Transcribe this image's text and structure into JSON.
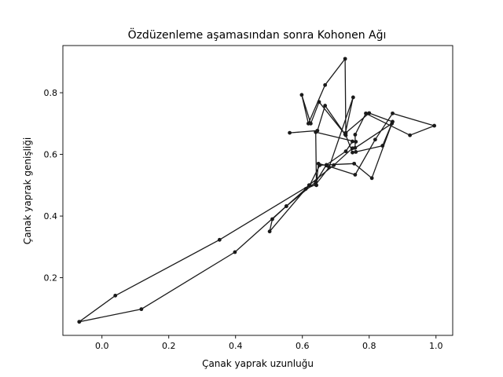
{
  "chart_data": {
    "type": "line",
    "title": "Özdüzenleme aşamasından sonra Kohonen Ağı",
    "xlabel": "Çanak yaprak uzunluğu",
    "ylabel": "Çanak yaprak genişliği",
    "xlim": [
      -0.117,
      1.05
    ],
    "ylim": [
      0.013,
      0.953
    ],
    "xticks": [
      0.0,
      0.2,
      0.4,
      0.6,
      0.8,
      1.0
    ],
    "xtick_labels": [
      "0.0",
      "0.2",
      "0.4",
      "0.6",
      "0.8",
      "1.0"
    ],
    "yticks": [
      0.2,
      0.4,
      0.6,
      0.8
    ],
    "ytick_labels": [
      "0.2",
      "0.4",
      "0.6",
      "0.8"
    ],
    "grid": false,
    "legend": "none",
    "line_color": "#1a1a1a",
    "marker": "circle",
    "series": [
      {
        "x": [
          -0.068,
          0.118,
          0.398,
          0.552,
          0.64,
          0.672,
          0.73,
          0.75,
          0.76,
          0.64,
          0.642,
          0.648,
          0.672,
          0.758,
          0.818,
          0.87,
          0.995,
          0.922,
          0.79,
          0.758,
          0.758,
          0.868,
          0.808,
          0.755,
          0.652,
          0.622,
          0.352,
          0.04,
          -0.068
        ],
        "y": [
          0.057,
          0.098,
          0.283,
          0.432,
          0.51,
          0.566,
          0.61,
          0.642,
          0.641,
          0.672,
          0.5,
          0.57,
          0.564,
          0.534,
          0.648,
          0.733,
          0.693,
          0.662,
          0.733,
          0.664,
          0.621,
          0.7,
          0.523,
          0.57,
          0.565,
          0.5,
          0.323,
          0.142,
          0.057
        ]
      },
      {
        "x": [
          0.562,
          0.645,
          0.668,
          0.73,
          0.75,
          0.76,
          0.84,
          0.87,
          0.8,
          0.73,
          0.728,
          0.668,
          0.618,
          0.598,
          0.625,
          0.65,
          0.728,
          0.752,
          0.68,
          0.64,
          0.61,
          0.552,
          0.51,
          0.502,
          0.62,
          0.694,
          0.75
        ],
        "y": [
          0.67,
          0.677,
          0.758,
          0.662,
          0.606,
          0.608,
          0.628,
          0.706,
          0.734,
          0.67,
          0.91,
          0.825,
          0.7,
          0.793,
          0.7,
          0.77,
          0.665,
          0.785,
          0.558,
          0.502,
          0.488,
          0.432,
          0.39,
          0.35,
          0.5,
          0.565,
          0.62
        ]
      }
    ]
  }
}
